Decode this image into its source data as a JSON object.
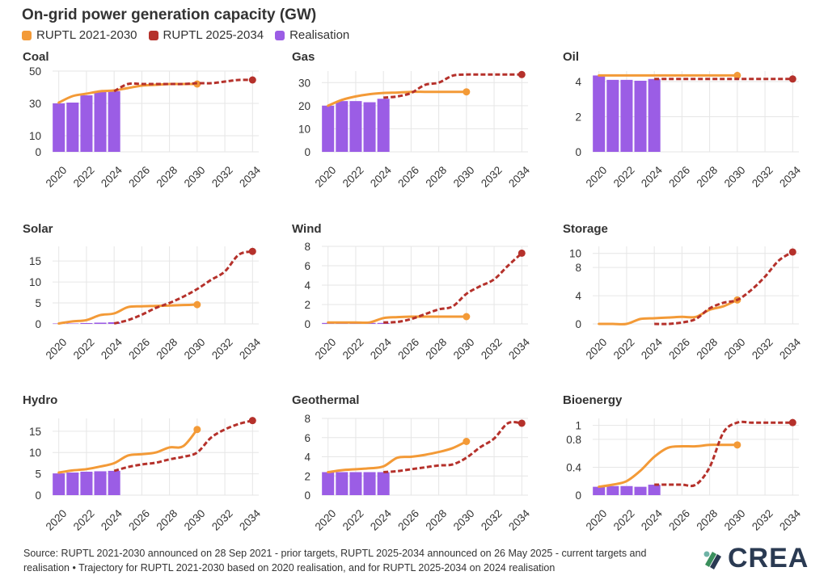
{
  "title": "On-grid power generation capacity (GW)",
  "legend": [
    {
      "label": "RUPTL 2021-2030",
      "color": "#f39a37"
    },
    {
      "label": "RUPTL 2025-2034",
      "color": "#b5312b"
    },
    {
      "label": "Realisation",
      "color": "#9b5de5"
    }
  ],
  "source": "Source: RUPTL 2021-2030 announced on 28 Sep 2021 - prior targets, RUPTL 2025-2034 announced on 26 May 2025 - current targets and realisation • Trajectory for RUPTL 2021-2030 based on 2020 realisation, and for RUPTL 2025-2034 on 2024 realisation",
  "logo_text": "CREA",
  "colors": {
    "ruptl2021": "#f39a37",
    "ruptl2025": "#b5312b",
    "realisation": "#9b5de5",
    "grid": "#e6e6e6"
  },
  "chart_data": [
    {
      "type": "bar+line",
      "title": "Coal",
      "ylim": [
        0,
        50
      ],
      "yticks": [
        0,
        10,
        30,
        50
      ],
      "xticks": [
        "2020",
        "2022",
        "2024",
        "2026",
        "2028",
        "2030",
        "2032",
        "2034"
      ],
      "realisation": {
        "x": [
          2020,
          2021,
          2022,
          2023,
          2024
        ],
        "values": [
          30,
          30.5,
          35,
          37,
          37.5
        ]
      },
      "ruptl_2021_2030": {
        "x": [
          2020,
          2021,
          2022,
          2023,
          2024,
          2025,
          2026,
          2027,
          2028,
          2029,
          2030
        ],
        "values": [
          30.5,
          34.5,
          36,
          37.5,
          38,
          39.5,
          41,
          41.5,
          42,
          42,
          42
        ]
      },
      "ruptl_2025_2034": {
        "x": [
          2024,
          2025,
          2026,
          2027,
          2028,
          2029,
          2030,
          2031,
          2032,
          2033,
          2034
        ],
        "values": [
          37.5,
          42,
          42,
          42,
          42,
          42,
          42.5,
          42.5,
          43.5,
          44.5,
          44.5
        ]
      }
    },
    {
      "type": "bar+line",
      "title": "Gas",
      "ylim": [
        0,
        35
      ],
      "yticks": [
        0,
        10,
        20,
        30
      ],
      "xticks": [
        "2020",
        "2022",
        "2024",
        "2026",
        "2028",
        "2030",
        "2032",
        "2034"
      ],
      "realisation": {
        "x": [
          2020,
          2021,
          2022,
          2023,
          2024
        ],
        "values": [
          20,
          22,
          22,
          21.5,
          23
        ]
      },
      "ruptl_2021_2030": {
        "x": [
          2020,
          2021,
          2022,
          2023,
          2024,
          2025,
          2026,
          2027,
          2028,
          2029,
          2030
        ],
        "values": [
          20,
          22.5,
          24,
          25,
          25.5,
          25.7,
          26,
          26,
          26,
          26,
          26
        ]
      },
      "ruptl_2025_2034": {
        "x": [
          2024,
          2025,
          2026,
          2027,
          2028,
          2029,
          2030,
          2031,
          2032,
          2033,
          2034
        ],
        "values": [
          23.5,
          24,
          25.5,
          29,
          30,
          33,
          33.5,
          33.5,
          33.5,
          33.5,
          33.5
        ]
      }
    },
    {
      "type": "bar+line",
      "title": "Oil",
      "ylim": [
        0,
        4.6
      ],
      "yticks": [
        0,
        2,
        4
      ],
      "xticks": [
        "2020",
        "2022",
        "2024",
        "2026",
        "2028",
        "2030",
        "2032",
        "2034"
      ],
      "realisation": {
        "x": [
          2020,
          2021,
          2022,
          2023,
          2024
        ],
        "values": [
          4.35,
          4.1,
          4.1,
          4.05,
          4.15
        ]
      },
      "ruptl_2021_2030": {
        "x": [
          2020,
          2021,
          2022,
          2023,
          2024,
          2025,
          2026,
          2027,
          2028,
          2029,
          2030
        ],
        "values": [
          4.35,
          4.35,
          4.35,
          4.35,
          4.35,
          4.35,
          4.35,
          4.35,
          4.35,
          4.35,
          4.35
        ]
      },
      "ruptl_2025_2034": {
        "x": [
          2024,
          2025,
          2026,
          2027,
          2028,
          2029,
          2030,
          2031,
          2032,
          2033,
          2034
        ],
        "values": [
          4.15,
          4.15,
          4.15,
          4.15,
          4.15,
          4.15,
          4.15,
          4.15,
          4.15,
          4.15,
          4.15
        ]
      }
    },
    {
      "type": "bar+line",
      "title": "Solar",
      "ylim": [
        0,
        18.5
      ],
      "yticks": [
        0,
        5,
        10,
        15
      ],
      "xticks": [
        "2020",
        "2022",
        "2024",
        "2026",
        "2028",
        "2030",
        "2032",
        "2034"
      ],
      "realisation": {
        "x": [
          2020,
          2021,
          2022,
          2023,
          2024
        ],
        "values": [
          0.1,
          0.1,
          0.2,
          0.3,
          0.4
        ]
      },
      "ruptl_2021_2030": {
        "x": [
          2020,
          2021,
          2022,
          2023,
          2024,
          2025,
          2026,
          2027,
          2028,
          2029,
          2030
        ],
        "values": [
          0.1,
          0.6,
          0.9,
          2.1,
          2.5,
          4,
          4.2,
          4.3,
          4.4,
          4.5,
          4.6
        ]
      },
      "ruptl_2025_2034": {
        "x": [
          2024,
          2025,
          2026,
          2027,
          2028,
          2029,
          2030,
          2031,
          2032,
          2033,
          2034
        ],
        "values": [
          0.1,
          0.9,
          2.2,
          3.8,
          5,
          6.5,
          8.3,
          10.5,
          12.5,
          16.5,
          17.3
        ]
      }
    },
    {
      "type": "bar+line",
      "title": "Wind",
      "ylim": [
        0,
        8
      ],
      "yticks": [
        0,
        2,
        4,
        6,
        8
      ],
      "xticks": [
        "2020",
        "2022",
        "2024",
        "2026",
        "2028",
        "2030",
        "2032",
        "2034"
      ],
      "realisation": {
        "x": [
          2020,
          2021,
          2022,
          2023,
          2024
        ],
        "values": [
          0.1,
          0.1,
          0.1,
          0.1,
          0.1
        ]
      },
      "ruptl_2021_2030": {
        "x": [
          2020,
          2021,
          2022,
          2023,
          2024,
          2025,
          2026,
          2027,
          2028,
          2029,
          2030
        ],
        "values": [
          0.15,
          0.15,
          0.15,
          0.15,
          0.6,
          0.7,
          0.75,
          0.75,
          0.75,
          0.75,
          0.75
        ]
      },
      "ruptl_2025_2034": {
        "x": [
          2024,
          2025,
          2026,
          2027,
          2028,
          2029,
          2030,
          2031,
          2032,
          2033,
          2034
        ],
        "values": [
          0.15,
          0.2,
          0.5,
          1,
          1.5,
          1.8,
          3.1,
          3.9,
          4.6,
          6,
          7.3
        ]
      }
    },
    {
      "type": "bar+line",
      "title": "Storage",
      "ylim": [
        0,
        11
      ],
      "yticks": [
        0,
        4,
        8,
        10
      ],
      "xticks": [
        "2020",
        "2022",
        "2024",
        "2026",
        "2028",
        "2030",
        "2032",
        "2034"
      ],
      "realisation": {
        "x": [],
        "values": []
      },
      "ruptl_2021_2030": {
        "x": [
          2020,
          2021,
          2022,
          2023,
          2024,
          2025,
          2026,
          2027,
          2028,
          2029,
          2030
        ],
        "values": [
          0,
          0,
          0,
          0.7,
          0.8,
          0.9,
          1,
          1,
          2,
          2.5,
          3.4
        ]
      },
      "ruptl_2025_2034": {
        "x": [
          2024,
          2025,
          2026,
          2027,
          2028,
          2029,
          2030,
          2031,
          2032,
          2033,
          2034
        ],
        "values": [
          0,
          0,
          0.2,
          0.7,
          2.2,
          3,
          3.4,
          4.8,
          6.7,
          9,
          10.2
        ]
      }
    },
    {
      "type": "bar+line",
      "title": "Hydro",
      "ylim": [
        0,
        18
      ],
      "yticks": [
        0,
        5,
        10,
        15
      ],
      "xticks": [
        "2020",
        "2022",
        "2024",
        "2026",
        "2028",
        "2030",
        "2032",
        "2034"
      ],
      "realisation": {
        "x": [
          2020,
          2021,
          2022,
          2023,
          2024
        ],
        "values": [
          5.1,
          5.3,
          5.5,
          5.6,
          5.7
        ]
      },
      "ruptl_2021_2030": {
        "x": [
          2020,
          2021,
          2022,
          2023,
          2024,
          2025,
          2026,
          2027,
          2028,
          2029,
          2030
        ],
        "values": [
          5.3,
          5.8,
          6.1,
          6.7,
          7.5,
          9.3,
          9.6,
          10,
          11.2,
          11.5,
          15.4
        ]
      },
      "ruptl_2025_2034": {
        "x": [
          2024,
          2025,
          2026,
          2027,
          2028,
          2029,
          2030,
          2031,
          2032,
          2033,
          2034
        ],
        "values": [
          5.7,
          6.6,
          7.2,
          7.6,
          8.4,
          9,
          10,
          13.5,
          15.4,
          16.7,
          17.5
        ]
      }
    },
    {
      "type": "bar+line",
      "title": "Geothermal",
      "ylim": [
        0,
        8
      ],
      "yticks": [
        0,
        2,
        4,
        6,
        8
      ],
      "xticks": [
        "2020",
        "2022",
        "2024",
        "2026",
        "2028",
        "2030",
        "2032",
        "2034"
      ],
      "realisation": {
        "x": [
          2020,
          2021,
          2022,
          2023,
          2024
        ],
        "values": [
          2.4,
          2.4,
          2.4,
          2.4,
          2.4
        ]
      },
      "ruptl_2021_2030": {
        "x": [
          2020,
          2021,
          2022,
          2023,
          2024,
          2025,
          2026,
          2027,
          2028,
          2029,
          2030
        ],
        "values": [
          2.4,
          2.6,
          2.7,
          2.8,
          3,
          3.9,
          4,
          4.2,
          4.5,
          4.9,
          5.6
        ]
      },
      "ruptl_2025_2034": {
        "x": [
          2024,
          2025,
          2026,
          2027,
          2028,
          2029,
          2030,
          2031,
          2032,
          2033,
          2034
        ],
        "values": [
          2.4,
          2.5,
          2.7,
          2.9,
          3.1,
          3.2,
          3.9,
          5,
          5.9,
          7.5,
          7.5
        ]
      }
    },
    {
      "type": "bar+line",
      "title": "Bioenergy",
      "ylim": [
        0,
        1.1
      ],
      "yticks": [
        0,
        0.4,
        0.8,
        1
      ],
      "xticks": [
        "2020",
        "2022",
        "2024",
        "2026",
        "2028",
        "2030",
        "2032",
        "2034"
      ],
      "realisation": {
        "x": [
          2020,
          2021,
          2022,
          2023,
          2024
        ],
        "values": [
          0.12,
          0.13,
          0.13,
          0.12,
          0.15
        ]
      },
      "ruptl_2021_2030": {
        "x": [
          2020,
          2021,
          2022,
          2023,
          2024,
          2025,
          2026,
          2027,
          2028,
          2029,
          2030
        ],
        "values": [
          0.12,
          0.15,
          0.2,
          0.35,
          0.55,
          0.68,
          0.7,
          0.7,
          0.72,
          0.72,
          0.72
        ]
      },
      "ruptl_2025_2034": {
        "x": [
          2024,
          2025,
          2026,
          2027,
          2028,
          2029,
          2030,
          2031,
          2032,
          2033,
          2034
        ],
        "values": [
          0.15,
          0.15,
          0.15,
          0.15,
          0.4,
          0.9,
          1.04,
          1.04,
          1.04,
          1.04,
          1.04
        ]
      }
    }
  ]
}
